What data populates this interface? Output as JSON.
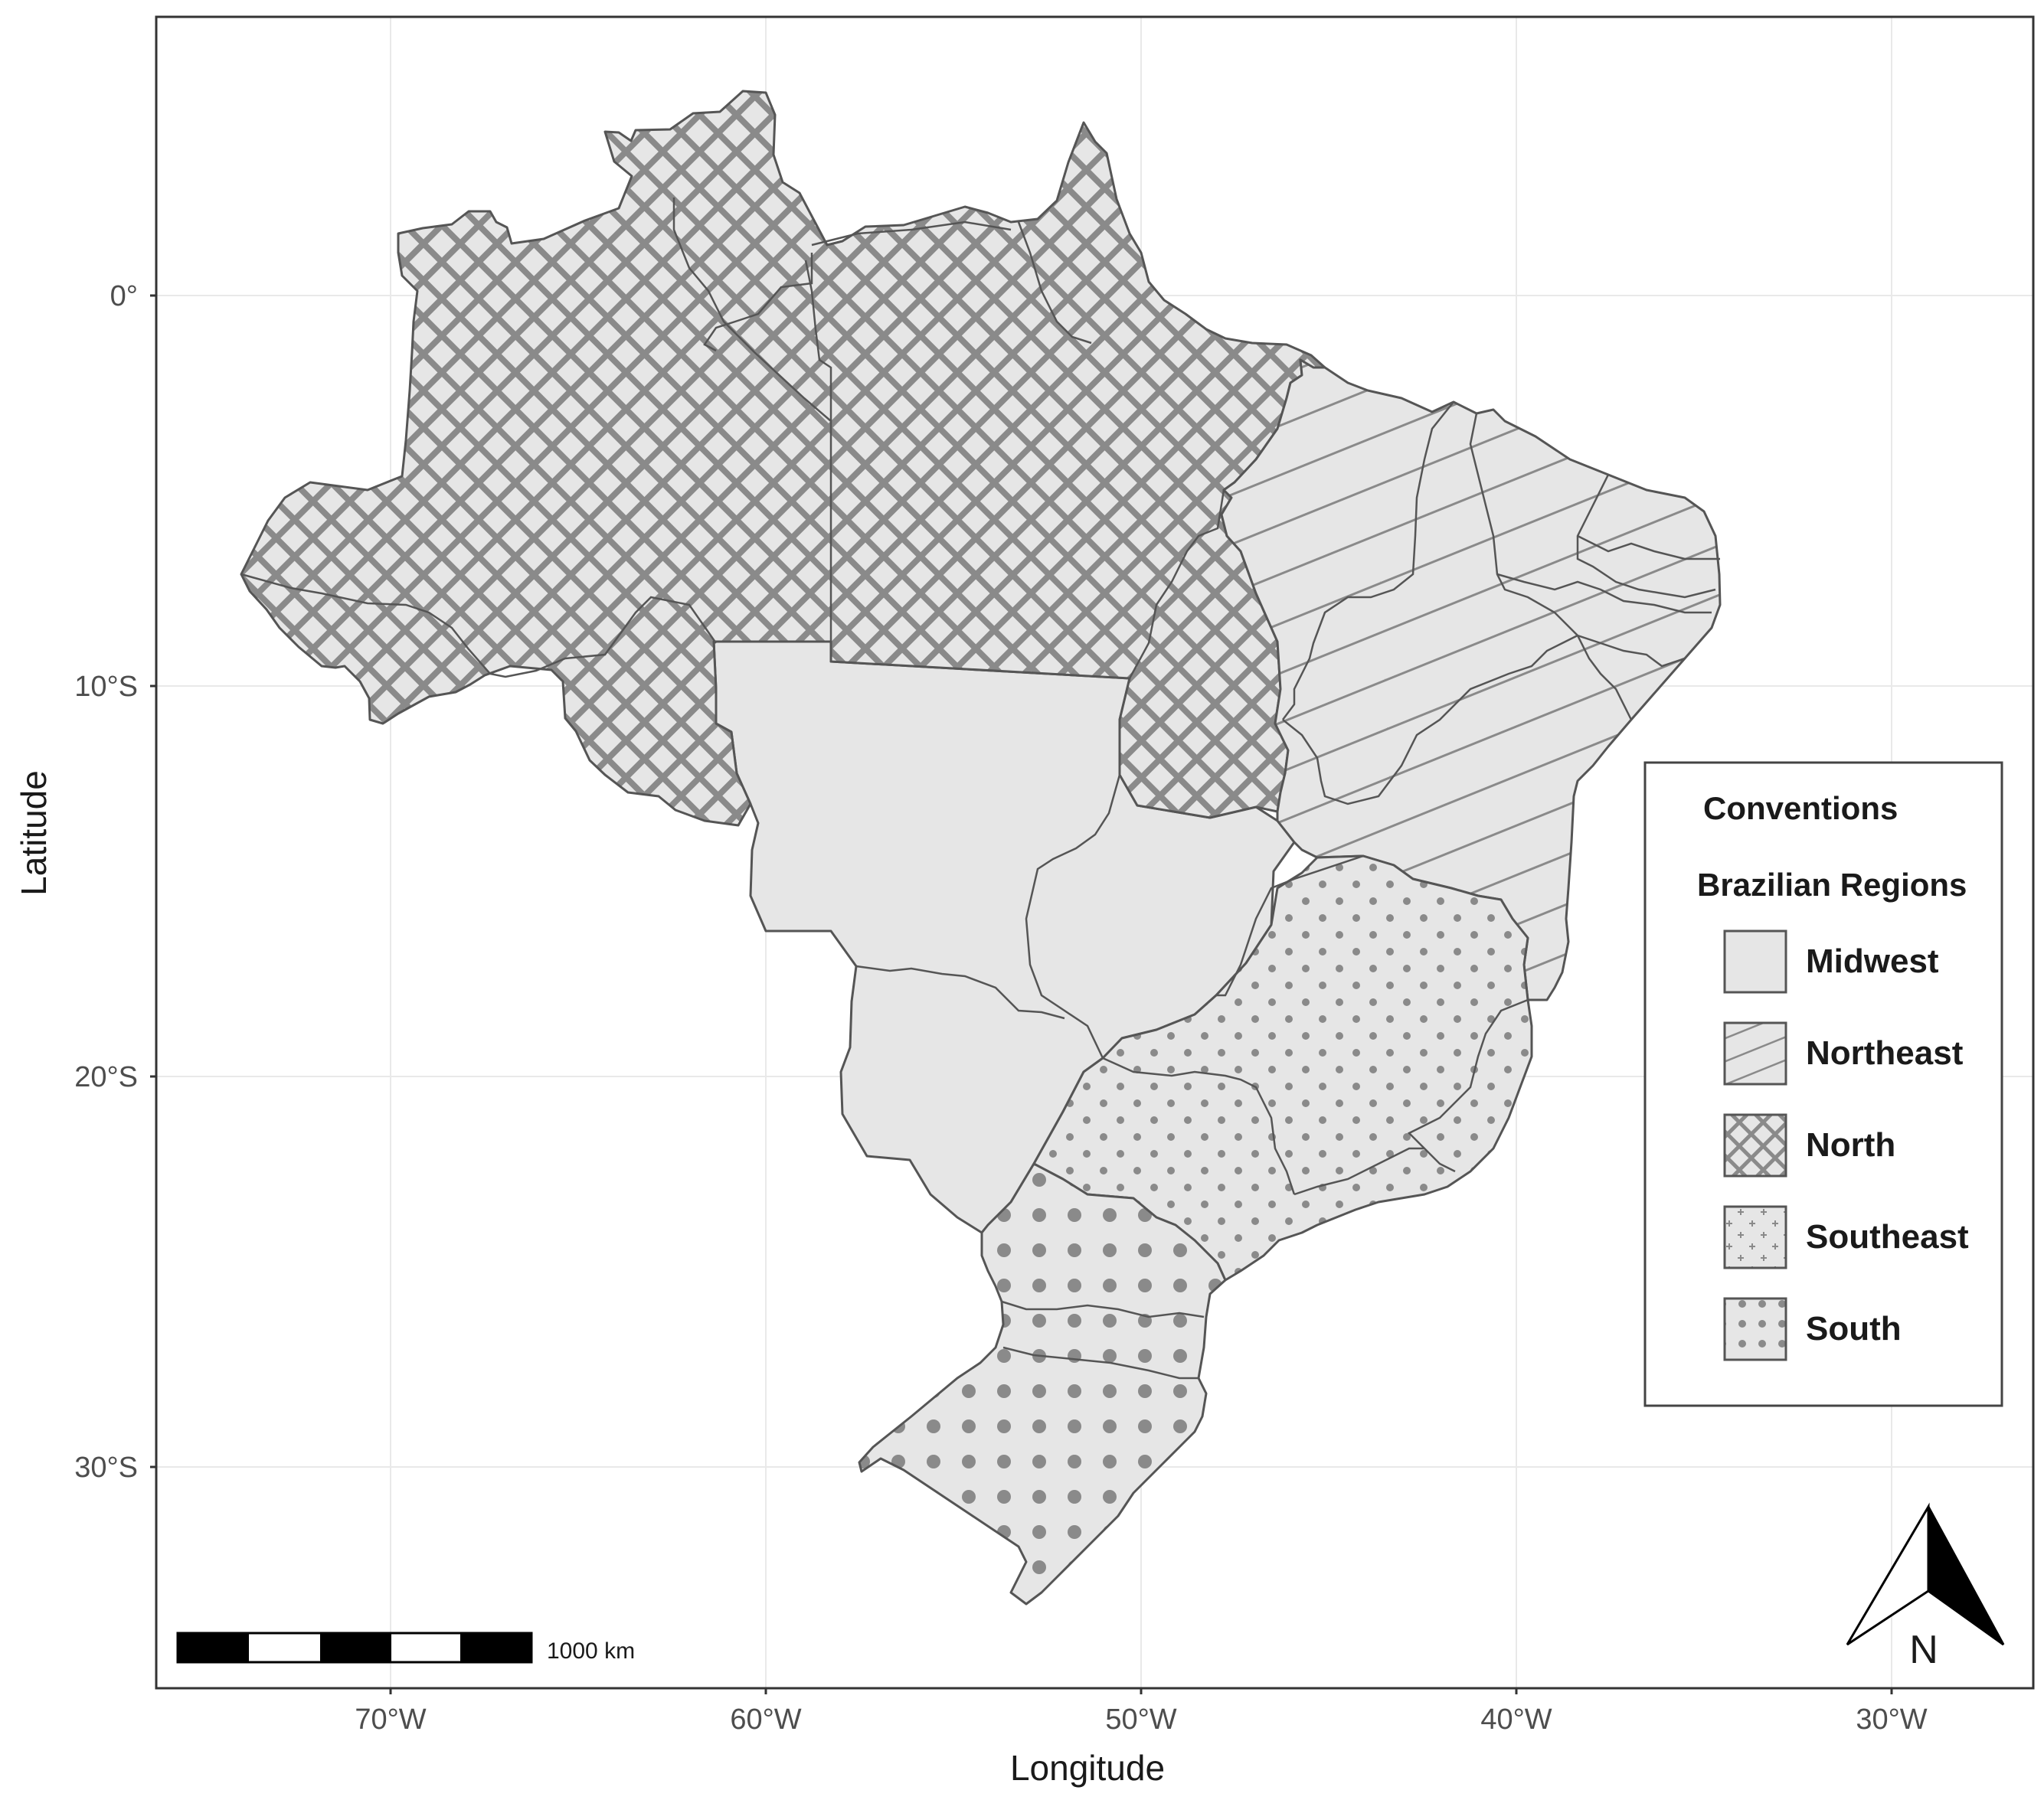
{
  "axes": {
    "xlabel": "Longitude",
    "ylabel": "Latitude",
    "x_ticks": [
      {
        "value": -70,
        "label": "70°W"
      },
      {
        "value": -60,
        "label": "60°W"
      },
      {
        "value": -50,
        "label": "50°W"
      },
      {
        "value": -40,
        "label": "40°W"
      },
      {
        "value": -30,
        "label": "30°W"
      }
    ],
    "y_ticks": [
      {
        "value": 0,
        "label": "0°"
      },
      {
        "value": -10,
        "label": "10°S"
      },
      {
        "value": -20,
        "label": "20°S"
      },
      {
        "value": -30,
        "label": "30°S"
      }
    ],
    "grid": true
  },
  "legend": {
    "title": "Conventions",
    "subtitle": "Brazilian Regions",
    "placement": "right",
    "items": [
      {
        "label": "Midwest",
        "pattern": "plain-fill"
      },
      {
        "label": "Northeast",
        "pattern": "diagonal-lines"
      },
      {
        "label": "North",
        "pattern": "crosshatch"
      },
      {
        "label": "Southeast",
        "pattern": "small-crosses"
      },
      {
        "label": "South",
        "pattern": "dots"
      }
    ]
  },
  "scale_bar": {
    "label": "1000 km",
    "segments": 5
  },
  "north_arrow": {
    "label": "N"
  },
  "colors": {
    "land_fill": "#e6e6e6",
    "pattern_gray": "#8a8a8a",
    "border": "#555555",
    "grid": "#e9e9e9",
    "frame": "#333333"
  }
}
